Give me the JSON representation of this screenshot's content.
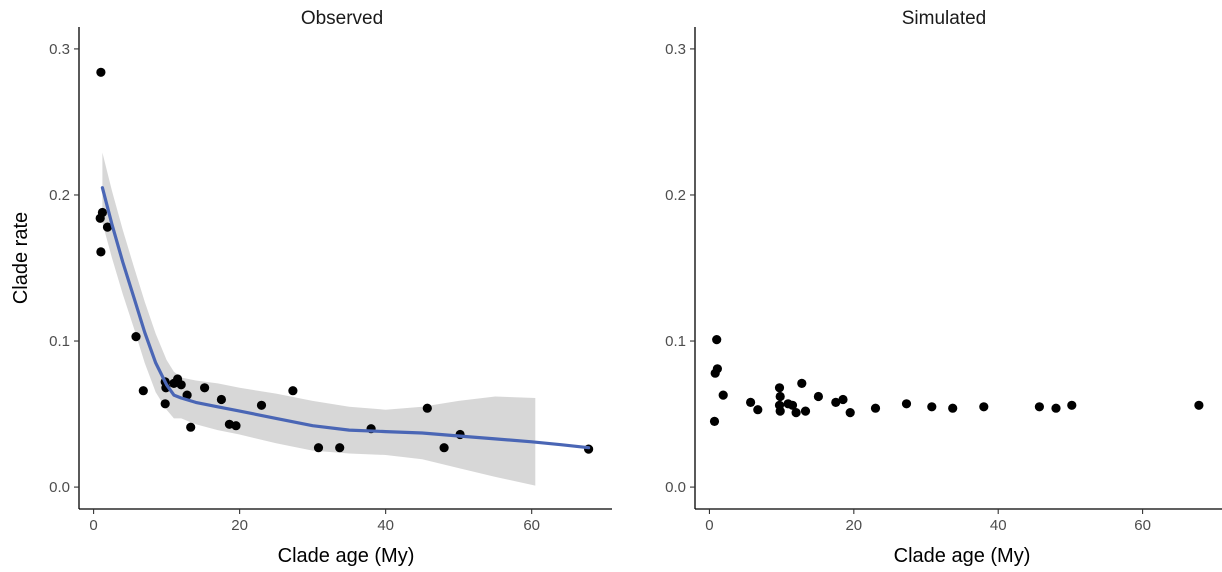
{
  "colors": {
    "points": "#000000",
    "smooth_line": "#4a66b5",
    "ribbon": "#d3d3d3",
    "axis": "#000000"
  },
  "chart_data": [
    {
      "type": "scatter",
      "title": "Observed",
      "xlabel": "Clade age (My)",
      "ylabel": "Clade rate",
      "xlim": [
        -2,
        71
      ],
      "ylim": [
        -0.015,
        0.315
      ],
      "xticks": [
        0,
        20,
        40,
        60
      ],
      "yticks": [
        0.0,
        0.1,
        0.2,
        0.3
      ],
      "xtick_labels": [
        "0",
        "20",
        "40",
        "60"
      ],
      "ytick_labels": [
        "0.0",
        "0.1",
        "0.2",
        "0.3"
      ],
      "grid": false,
      "points": [
        {
          "x": 1.0,
          "y": 0.284
        },
        {
          "x": 0.9,
          "y": 0.184
        },
        {
          "x": 1.2,
          "y": 0.188
        },
        {
          "x": 1.9,
          "y": 0.178
        },
        {
          "x": 1.0,
          "y": 0.161
        },
        {
          "x": 5.8,
          "y": 0.103
        },
        {
          "x": 6.8,
          "y": 0.066
        },
        {
          "x": 9.8,
          "y": 0.072
        },
        {
          "x": 9.9,
          "y": 0.068
        },
        {
          "x": 9.8,
          "y": 0.057
        },
        {
          "x": 11.0,
          "y": 0.071
        },
        {
          "x": 11.5,
          "y": 0.074
        },
        {
          "x": 12.0,
          "y": 0.07
        },
        {
          "x": 12.8,
          "y": 0.063
        },
        {
          "x": 13.3,
          "y": 0.041
        },
        {
          "x": 15.2,
          "y": 0.068
        },
        {
          "x": 17.5,
          "y": 0.06
        },
        {
          "x": 18.6,
          "y": 0.043
        },
        {
          "x": 19.5,
          "y": 0.042
        },
        {
          "x": 23.0,
          "y": 0.056
        },
        {
          "x": 27.3,
          "y": 0.066
        },
        {
          "x": 30.8,
          "y": 0.027
        },
        {
          "x": 33.7,
          "y": 0.027
        },
        {
          "x": 38.0,
          "y": 0.04
        },
        {
          "x": 45.7,
          "y": 0.054
        },
        {
          "x": 48.0,
          "y": 0.027
        },
        {
          "x": 50.2,
          "y": 0.036
        },
        {
          "x": 67.8,
          "y": 0.026
        }
      ],
      "smooth": {
        "x": [
          1.2,
          2.5,
          4.0,
          5.5,
          7.0,
          8.5,
          10.0,
          11.0,
          12.0,
          14.0,
          17.0,
          20.0,
          25.0,
          30.0,
          35.0,
          40.0,
          45.0,
          50.0,
          55.0,
          60.0,
          64.0,
          67.8
        ],
        "y": [
          0.205,
          0.18,
          0.154,
          0.13,
          0.106,
          0.085,
          0.07,
          0.063,
          0.061,
          0.058,
          0.055,
          0.052,
          0.047,
          0.042,
          0.039,
          0.038,
          0.037,
          0.035,
          0.033,
          0.031,
          0.029,
          0.027
        ],
        "ci_x": [
          1.2,
          2.5,
          4.0,
          5.5,
          7.0,
          8.5,
          10.0,
          11.0,
          12.0,
          14.0,
          17.0,
          20.0,
          25.0,
          30.0,
          35.0,
          40.0,
          45.0,
          50.0,
          55.0,
          60.5
        ],
        "ci_upper": [
          0.229,
          0.203,
          0.176,
          0.151,
          0.127,
          0.105,
          0.087,
          0.079,
          0.075,
          0.073,
          0.071,
          0.068,
          0.064,
          0.059,
          0.055,
          0.053,
          0.055,
          0.059,
          0.062,
          0.061
        ],
        "ci_lower": [
          0.181,
          0.157,
          0.132,
          0.109,
          0.085,
          0.065,
          0.053,
          0.047,
          0.047,
          0.043,
          0.039,
          0.036,
          0.03,
          0.025,
          0.023,
          0.022,
          0.019,
          0.013,
          0.007,
          0.001
        ]
      }
    },
    {
      "type": "scatter",
      "title": "Simulated",
      "xlabel": "Clade age (My)",
      "ylabel": "",
      "xlim": [
        -2,
        71
      ],
      "ylim": [
        -0.015,
        0.315
      ],
      "xticks": [
        0,
        20,
        40,
        60
      ],
      "yticks": [
        0.0,
        0.1,
        0.2,
        0.3
      ],
      "xtick_labels": [
        "0",
        "20",
        "40",
        "60"
      ],
      "ytick_labels": [
        "0.0",
        "0.1",
        "0.2",
        "0.3"
      ],
      "grid": false,
      "points": [
        {
          "x": 1.0,
          "y": 0.101
        },
        {
          "x": 1.1,
          "y": 0.081
        },
        {
          "x": 0.8,
          "y": 0.078
        },
        {
          "x": 1.9,
          "y": 0.063
        },
        {
          "x": 0.7,
          "y": 0.045
        },
        {
          "x": 5.7,
          "y": 0.058
        },
        {
          "x": 6.7,
          "y": 0.053
        },
        {
          "x": 9.7,
          "y": 0.068
        },
        {
          "x": 9.8,
          "y": 0.062
        },
        {
          "x": 9.7,
          "y": 0.056
        },
        {
          "x": 9.8,
          "y": 0.052
        },
        {
          "x": 10.9,
          "y": 0.057
        },
        {
          "x": 11.5,
          "y": 0.056
        },
        {
          "x": 12.0,
          "y": 0.051
        },
        {
          "x": 12.8,
          "y": 0.071
        },
        {
          "x": 13.3,
          "y": 0.052
        },
        {
          "x": 15.1,
          "y": 0.062
        },
        {
          "x": 17.5,
          "y": 0.058
        },
        {
          "x": 18.5,
          "y": 0.06
        },
        {
          "x": 19.5,
          "y": 0.051
        },
        {
          "x": 23.0,
          "y": 0.054
        },
        {
          "x": 27.3,
          "y": 0.057
        },
        {
          "x": 30.8,
          "y": 0.055
        },
        {
          "x": 33.7,
          "y": 0.054
        },
        {
          "x": 38.0,
          "y": 0.055
        },
        {
          "x": 45.7,
          "y": 0.055
        },
        {
          "x": 48.0,
          "y": 0.054
        },
        {
          "x": 50.2,
          "y": 0.056
        },
        {
          "x": 67.8,
          "y": 0.056
        }
      ]
    }
  ]
}
